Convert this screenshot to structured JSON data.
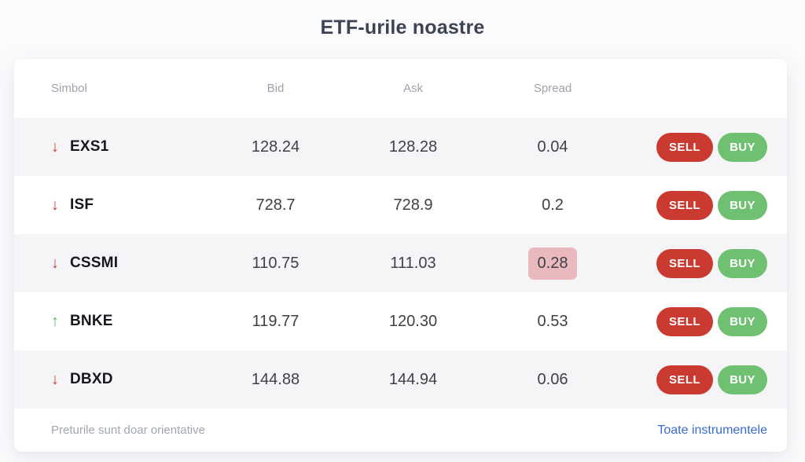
{
  "page": {
    "title": "ETF-urile noastre"
  },
  "icons": {
    "down": "↓",
    "up": "↑"
  },
  "colors": {
    "sell_button": "#cb3a31",
    "buy_button": "#6fc071",
    "trend_down": "#c2413b",
    "trend_up": "#56bb5f",
    "spread_highlight_bg": "#e9b9be",
    "link": "#3a6bd0",
    "row_stripe": "#f5f5f8"
  },
  "table": {
    "columns": [
      "Simbol",
      "Bid",
      "Ask",
      "Spread"
    ],
    "sell_label": "SELL",
    "buy_label": "BUY",
    "rows": [
      {
        "symbol": "EXS1",
        "direction": "down",
        "bid": "128.24",
        "ask": "128.28",
        "spread": "0.04",
        "spread_highlight": false
      },
      {
        "symbol": "ISF",
        "direction": "down",
        "bid": "728.7",
        "ask": "728.9",
        "spread": "0.2",
        "spread_highlight": false
      },
      {
        "symbol": "CSSMI",
        "direction": "down",
        "bid": "110.75",
        "ask": "111.03",
        "spread": "0.28",
        "spread_highlight": true
      },
      {
        "symbol": "BNKE",
        "direction": "up",
        "bid": "119.77",
        "ask": "120.30",
        "spread": "0.53",
        "spread_highlight": false
      },
      {
        "symbol": "DBXD",
        "direction": "down",
        "bid": "144.88",
        "ask": "144.94",
        "spread": "0.06",
        "spread_highlight": false
      }
    ]
  },
  "footer": {
    "note": "Preturile sunt doar orientative",
    "link": "Toate instrumentele"
  }
}
